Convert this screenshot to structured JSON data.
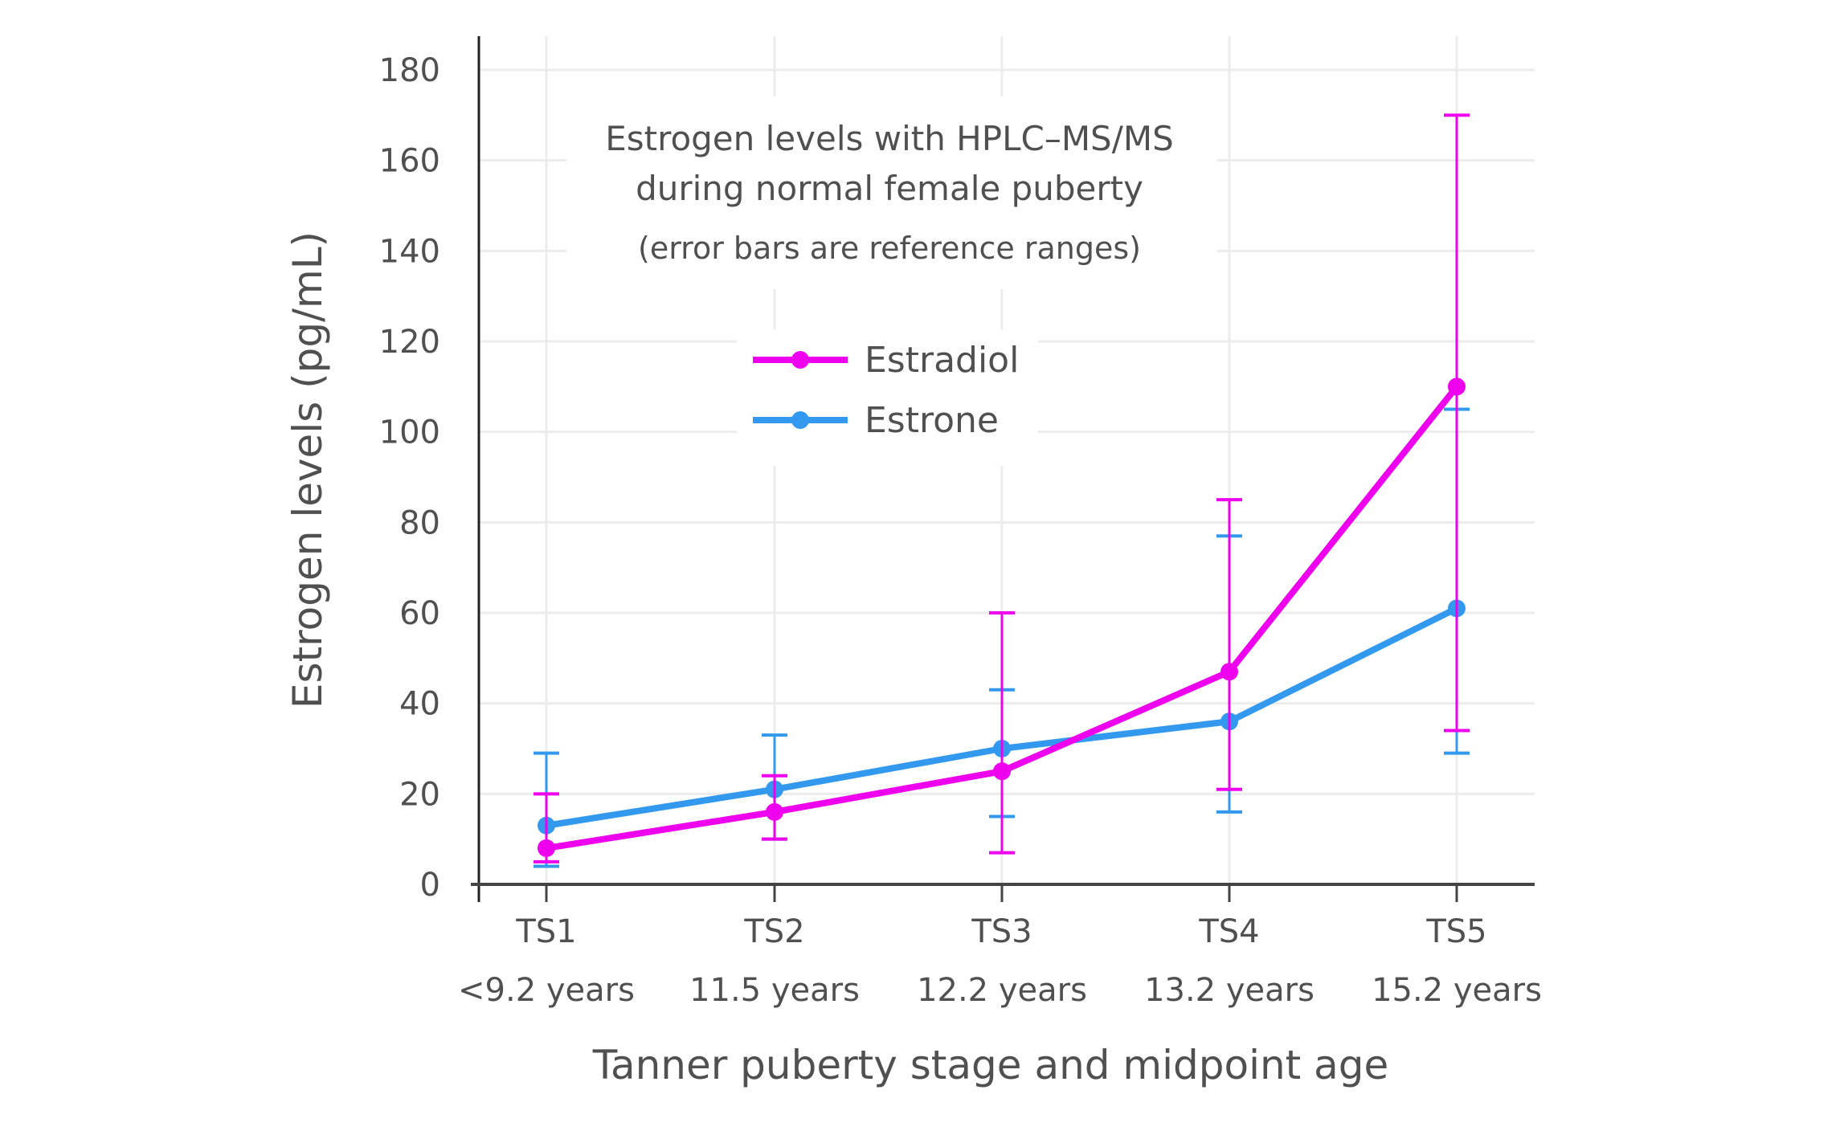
{
  "chart_data": {
    "type": "line",
    "title_lines": [
      "Estrogen levels with HPLC–MS/MS",
      "during normal female puberty"
    ],
    "subtitle": "(error bars are reference ranges)",
    "xlabel": "Tanner puberty stage and midpoint age",
    "ylabel": "Estrogen levels (pg/mL)",
    "ylim": [
      0,
      180
    ],
    "yticks": [
      0,
      20,
      40,
      60,
      80,
      100,
      120,
      140,
      160,
      180
    ],
    "categories": [
      "TS1",
      "TS2",
      "TS3",
      "TS4",
      "TS5"
    ],
    "category_sublabels": [
      "<9.2 years",
      "11.5 years",
      "12.2 years",
      "13.2 years",
      "15.2 years"
    ],
    "grid": true,
    "legend_placement": "center-left inside plot",
    "series": [
      {
        "name": "Estradiol",
        "color": "#ee00ee",
        "values": [
          8,
          16,
          25,
          47,
          110
        ],
        "error_low": [
          5,
          10,
          7,
          21,
          34
        ],
        "error_high": [
          20,
          24,
          60,
          85,
          170
        ]
      },
      {
        "name": "Estrone",
        "color": "#3399ee",
        "values": [
          13,
          21,
          30,
          36,
          61
        ],
        "error_low": [
          4,
          10,
          15,
          16,
          29
        ],
        "error_high": [
          29,
          33,
          43,
          77,
          105
        ]
      }
    ]
  }
}
